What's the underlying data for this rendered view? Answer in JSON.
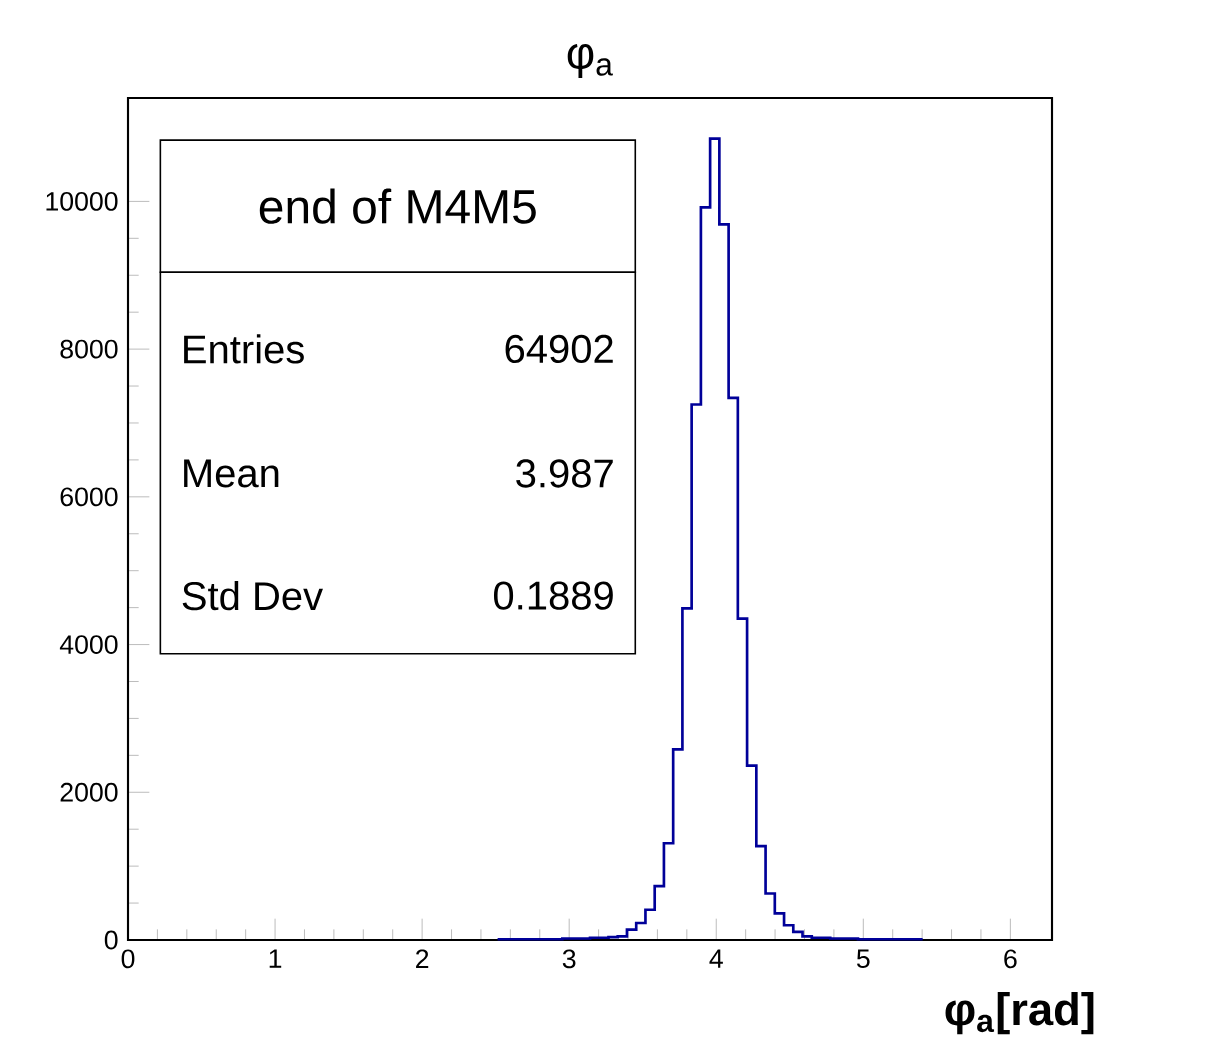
{
  "chart_data": {
    "type": "histogram",
    "title": "φ$_{a}$",
    "xlabel": "φ$_{a}$[rad]",
    "bins": [
      2.5133,
      2.5761,
      2.6389,
      2.7018,
      2.7646,
      2.8274,
      2.8903,
      2.9531,
      3.0159,
      3.0788,
      3.1416,
      3.2044,
      3.2673,
      3.3301,
      3.3929,
      3.4558,
      3.5186,
      3.5814,
      3.6442,
      3.7071,
      3.7699,
      3.8327,
      3.8956,
      3.9584,
      4.0212,
      4.0841,
      4.1469,
      4.2097,
      4.2726,
      4.3354,
      4.3982,
      4.4611,
      4.5239,
      4.5867,
      4.6496,
      4.7124,
      4.7752,
      4.8381,
      4.9009,
      4.9637,
      5.0265,
      5.0894,
      5.1522,
      5.215,
      5.2779,
      5.3407,
      5.4035
    ],
    "values": [
      10,
      10,
      10,
      10,
      10,
      10,
      10,
      20,
      20,
      20,
      30,
      30,
      40,
      50,
      140,
      230,
      410,
      730,
      1310,
      2580,
      4490,
      7250,
      9920,
      10850,
      9690,
      7340,
      4350,
      2360,
      1270,
      630,
      360,
      200,
      110,
      50,
      30,
      30,
      20,
      20,
      20,
      10,
      10,
      10,
      10,
      10,
      10,
      10
    ],
    "color": "#000099",
    "xlim": [
      0,
      6.2832
    ],
    "ylim": [
      0,
      11400
    ],
    "xticks": [
      0,
      1,
      2,
      3,
      4,
      5,
      6
    ],
    "yticks": [
      0,
      2000,
      4000,
      6000,
      8000,
      10000
    ],
    "annotations": [
      "end of M4M5",
      "Entries",
      "64902",
      "Mean",
      "3.987",
      "Std Dev",
      "0.1889"
    ]
  }
}
